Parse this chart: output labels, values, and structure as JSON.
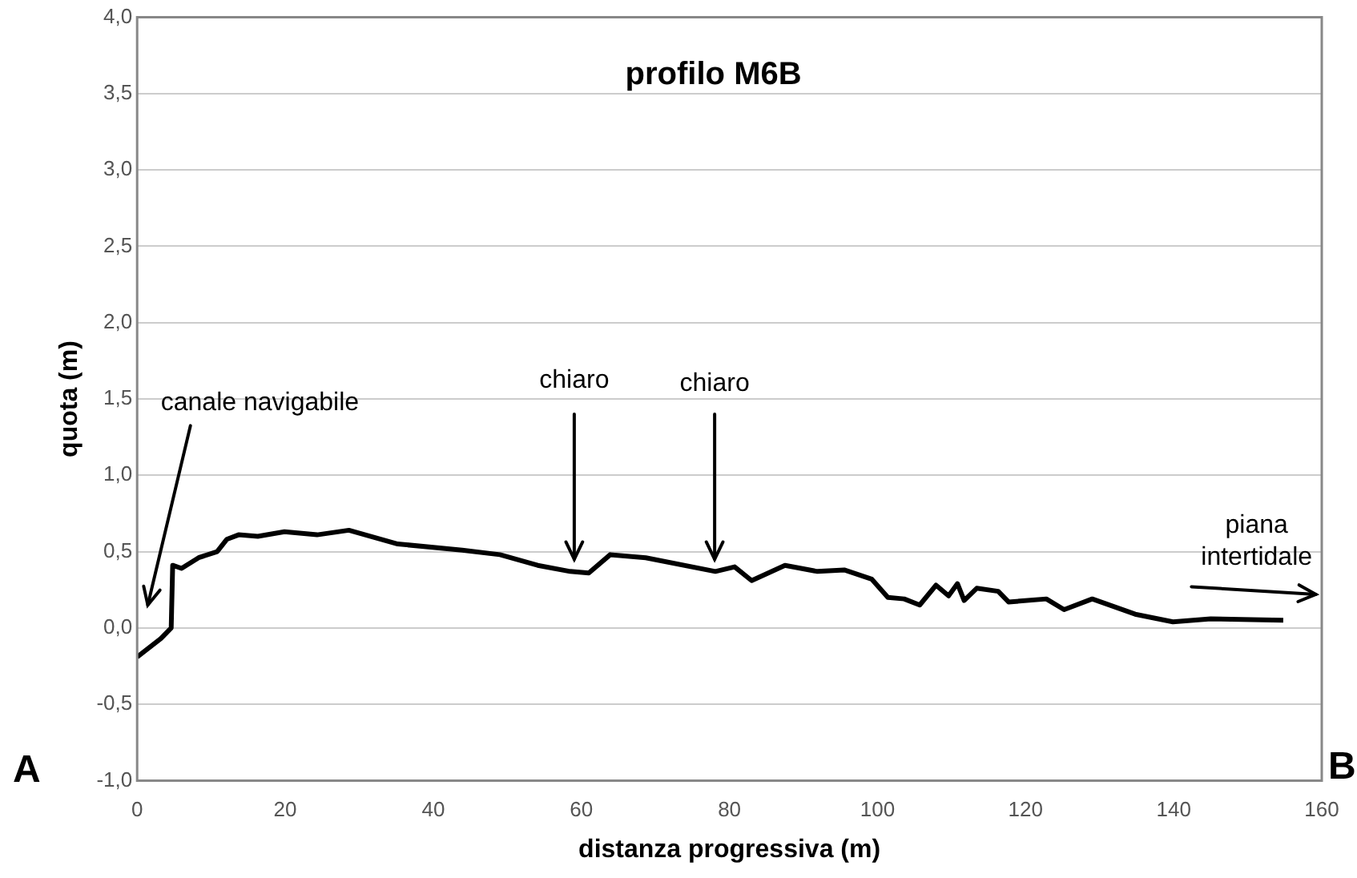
{
  "chart_data": {
    "type": "line",
    "title": "profilo M6B",
    "xlabel": "distanza progressiva (m)",
    "ylabel": "quota (m)",
    "series": [
      {
        "color": "#000000",
        "x": [
          0,
          3.2,
          4.6,
          4.8,
          6.0,
          8.3,
          10.8,
          12.1,
          13.7,
          16.3,
          19.9,
          24.3,
          28.6,
          35.2,
          43.9,
          49.0,
          54.1,
          58.5,
          61.0,
          63.9,
          68.7,
          78.1,
          80.7,
          83.0,
          87.5,
          91.9,
          95.5,
          99.2,
          101.4,
          103.6,
          105.7,
          107.9,
          109.6,
          110.8,
          111.7,
          113.4,
          116.3,
          117.7,
          122.8,
          125.2,
          129.0,
          134.8,
          139.9,
          145.0,
          154.8
        ],
        "values": [
          -0.19,
          -0.07,
          0.0,
          0.41,
          0.39,
          0.46,
          0.5,
          0.58,
          0.61,
          0.6,
          0.63,
          0.61,
          0.64,
          0.55,
          0.51,
          0.48,
          0.41,
          0.37,
          0.36,
          0.48,
          0.46,
          0.37,
          0.4,
          0.31,
          0.41,
          0.37,
          0.38,
          0.32,
          0.2,
          0.19,
          0.15,
          0.28,
          0.21,
          0.29,
          0.18,
          0.26,
          0.24,
          0.17,
          0.19,
          0.12,
          0.19,
          0.09,
          0.04,
          0.06,
          0.05
        ]
      }
    ],
    "xlim": [
      0,
      160
    ],
    "xticks": [
      0,
      20,
      40,
      60,
      80,
      100,
      120,
      140,
      160
    ],
    "ylim": [
      -1,
      4
    ],
    "yticks": [
      {
        "value": -1,
        "label": "-1,0"
      },
      {
        "value": -0.5,
        "label": "-0,5"
      },
      {
        "value": 0,
        "label": "0,0"
      },
      {
        "value": 0.5,
        "label": "0,5"
      },
      {
        "value": 1,
        "label": "1,0"
      },
      {
        "value": 1.5,
        "label": "1,5"
      },
      {
        "value": 2,
        "label": "2,0"
      },
      {
        "value": 2.5,
        "label": "2,5"
      },
      {
        "value": 3,
        "label": "3,0"
      },
      {
        "value": 3.5,
        "label": "3,5"
      },
      {
        "value": 4,
        "label": "4,0"
      }
    ],
    "grid": "y",
    "legend": false,
    "marker": "none",
    "line_style": "solid",
    "annotations": [
      "canale navigabile",
      "chiaro",
      "chiaro",
      "piana intertidale",
      "A",
      "B"
    ]
  }
}
